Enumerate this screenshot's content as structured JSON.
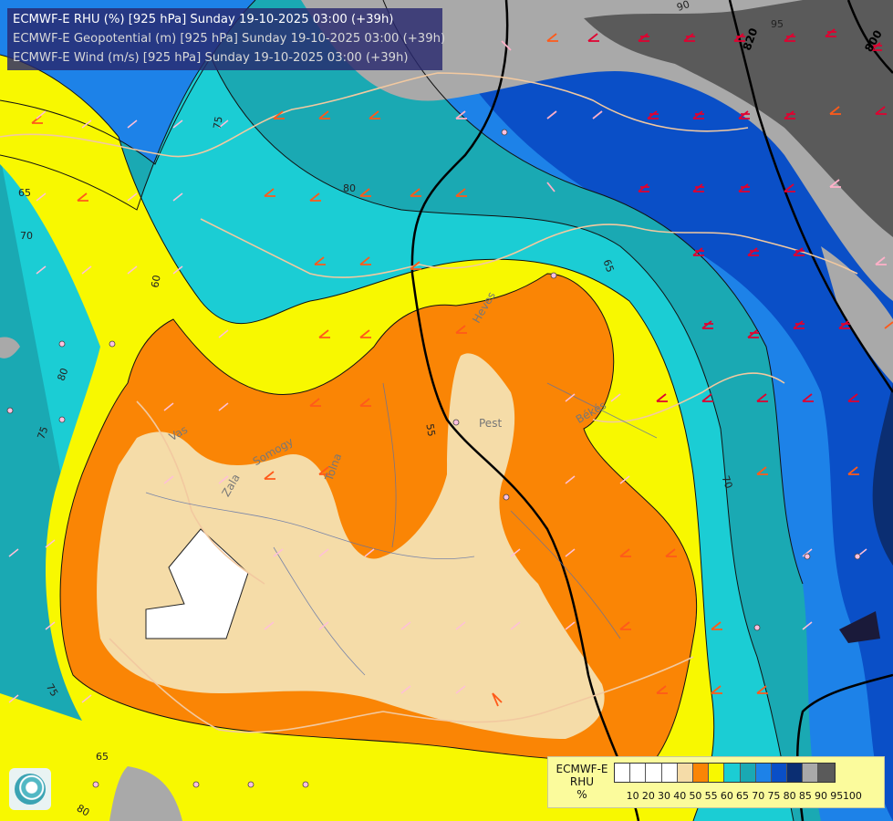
{
  "titles": [
    "ECMWF-E RHU (%) [925 hPa] Sunday 19-10-2025 03:00 (+39h)",
    "ECMWF-E Geopotential (m) [925 hPa] Sunday 19-10-2025 03:00 (+39h)",
    "ECMWF-E Wind (m/s) [925 hPa] Sunday 19-10-2025 03:00 (+39h)"
  ],
  "legend": {
    "source": "ECMWF-E",
    "variable": "RHU",
    "unit": "%",
    "ticks": [
      "10",
      "20",
      "30",
      "40",
      "50",
      "55",
      "60",
      "65",
      "70",
      "75",
      "80",
      "85",
      "90",
      "95",
      "100"
    ],
    "colors": [
      "#ffffff",
      "#ffffff",
      "#ffffff",
      "#ffffff",
      "#f5dca8",
      "#fa8505",
      "#f8f800",
      "#1bcdd4",
      "#1aa9b3",
      "#1d82e8",
      "#0a4fc7",
      "#0b2e72",
      "#a9a9a9",
      "#5a5a5a"
    ]
  },
  "contour_labels": [
    "75",
    "65",
    "70",
    "60",
    "80",
    "65",
    "55",
    "70",
    "75",
    "80",
    "75",
    "65",
    "80",
    "95",
    "90"
  ],
  "geopotential_labels": [
    "820",
    "800"
  ],
  "places": [
    "Pest",
    "Békés",
    "Heves",
    "Zala",
    "Somogy",
    "Tolna",
    "Vas"
  ]
}
